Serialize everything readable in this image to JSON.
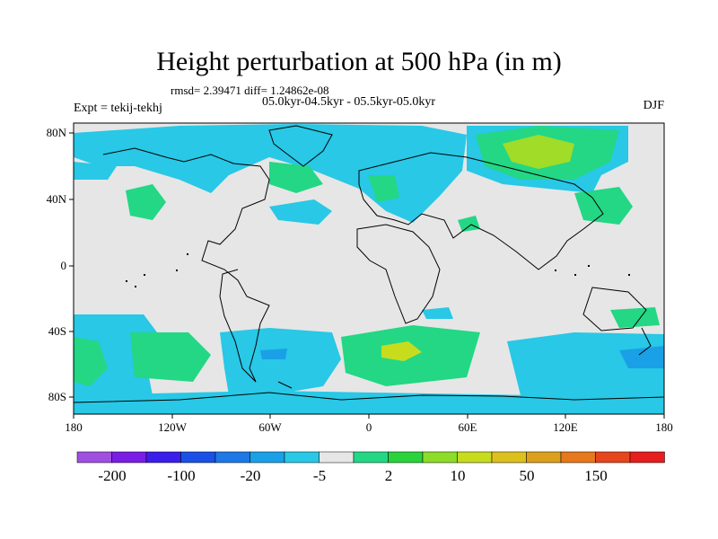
{
  "title": "Height perturbation at 500 hPa (in m)",
  "stats": "rmsd= 2.39471 diff= 1.24862e-08",
  "period": "05.0kyr-04.5kyr - 05.5kyr-05.0kyr",
  "experiment": "Expt = tekij-tekhj",
  "season": "DJF",
  "lat_ticks": [
    "80N",
    "40N",
    "0",
    "40S",
    "80S"
  ],
  "lon_ticks": [
    "180",
    "120W",
    "60W",
    "0",
    "60E",
    "120E",
    "180"
  ],
  "colorbar": {
    "colors": [
      "#a050e0",
      "#7a1ee6",
      "#3c1eea",
      "#1a50e6",
      "#1e78e6",
      "#1aa0e6",
      "#28c8e6",
      "#e6e6e6",
      "#23d785",
      "#2ad23c",
      "#8cdc28",
      "#c8dc1e",
      "#dcc01e",
      "#dca01e",
      "#e6781e",
      "#e6461e",
      "#e61e1e"
    ],
    "labels": [
      "-200",
      "-100",
      "-20",
      "-5",
      "2",
      "10",
      "50",
      "150"
    ]
  },
  "map_colors": {
    "background": "#e6e6e6",
    "light_blue": "#28c8e6",
    "mid_blue": "#1aa0e6",
    "green": "#23d785",
    "bright_green": "#2ad23c",
    "yellow_green": "#a0dc28"
  }
}
